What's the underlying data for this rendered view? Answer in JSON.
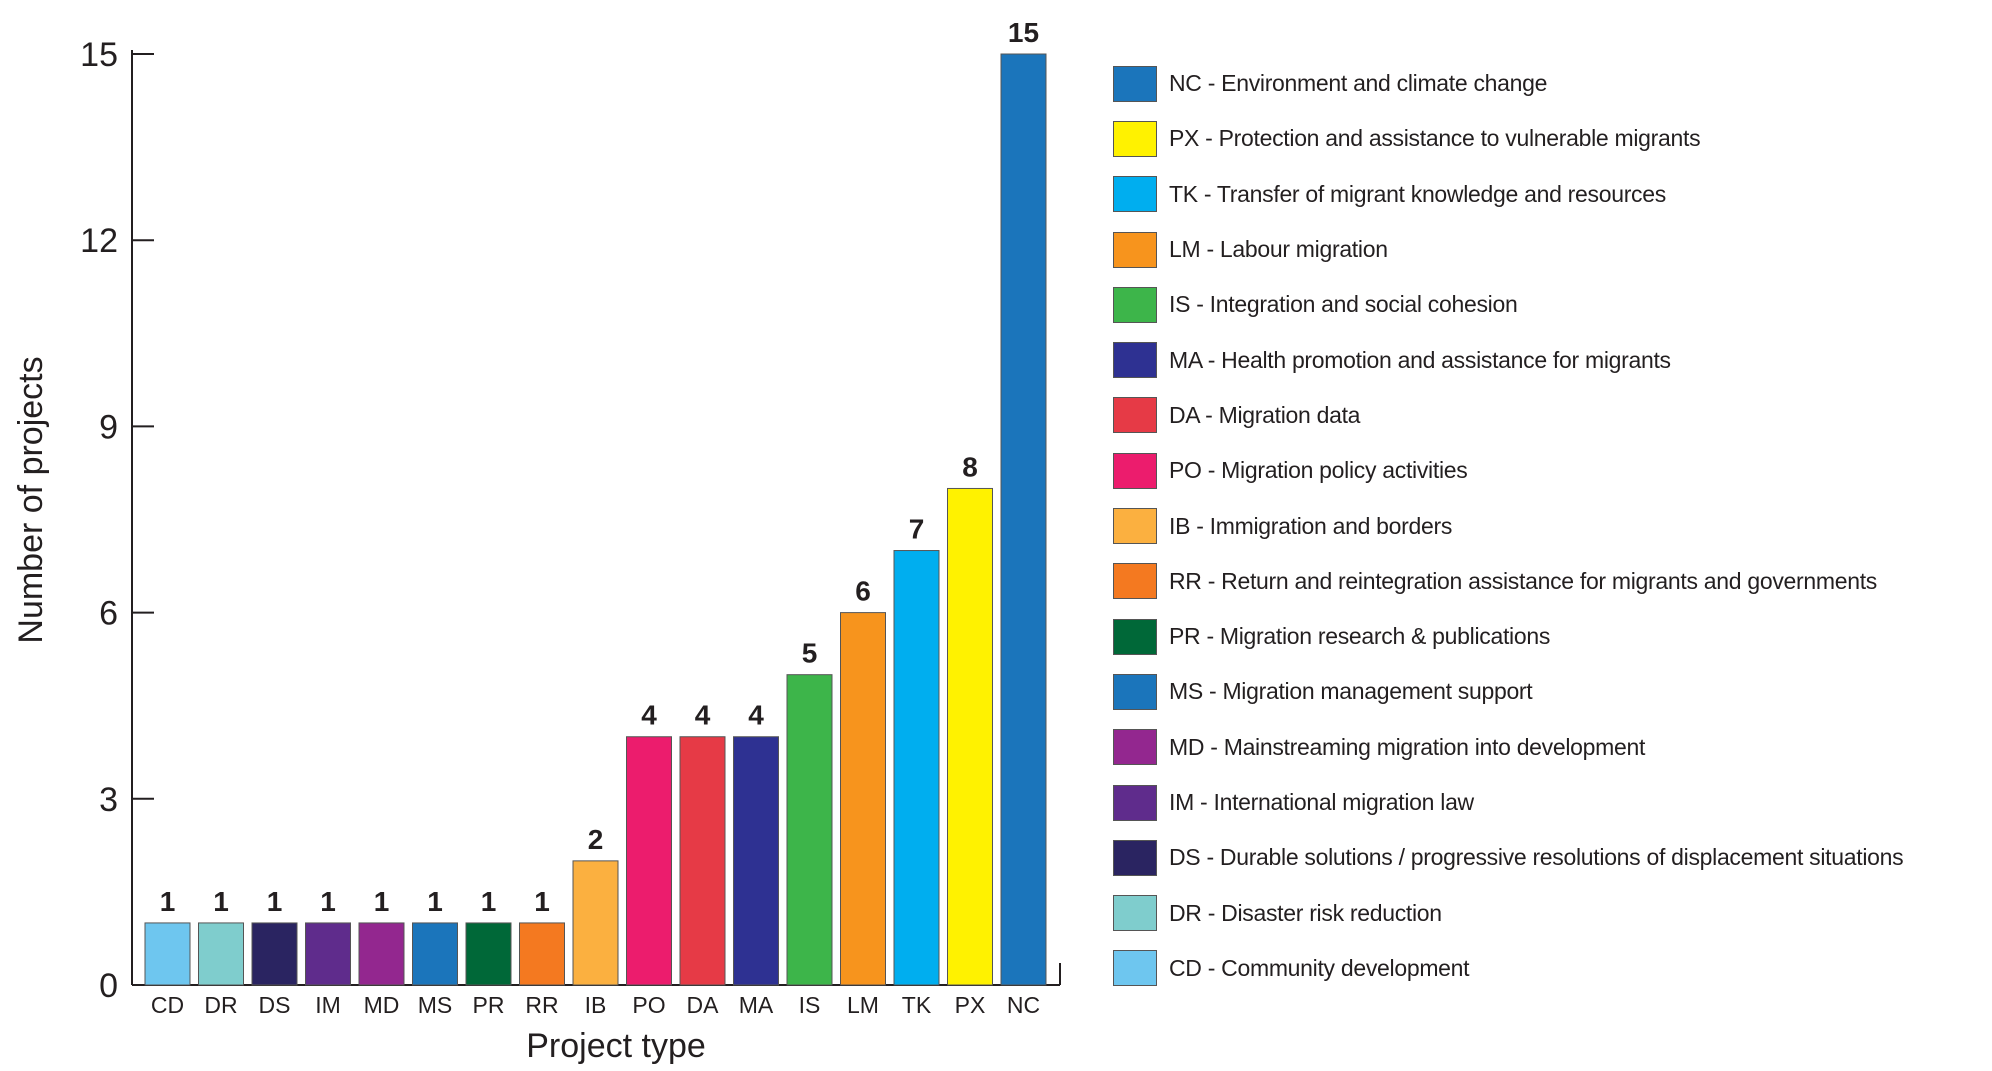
{
  "chart_data": {
    "type": "bar",
    "xlabel": "Project type",
    "ylabel": "Number of projects",
    "ylim": [
      0,
      15
    ],
    "yticks": [
      0,
      3,
      6,
      9,
      12,
      15
    ],
    "grid": false,
    "legend_position": "right",
    "categories": [
      "CD",
      "DR",
      "DS",
      "IM",
      "MD",
      "MS",
      "PR",
      "RR",
      "IB",
      "PO",
      "DA",
      "MA",
      "IS",
      "LM",
      "TK",
      "PX",
      "NC"
    ],
    "values": [
      1,
      1,
      1,
      1,
      1,
      1,
      1,
      1,
      2,
      4,
      4,
      4,
      5,
      6,
      7,
      8,
      15
    ],
    "colors": [
      "#6ec6ef",
      "#7fcdcd",
      "#2a2461",
      "#5f2c8c",
      "#93278f",
      "#1b75bb",
      "#006838",
      "#f47920",
      "#fbb040",
      "#ec1c6d",
      "#e63a46",
      "#2e3192",
      "#3db54a",
      "#f7941d",
      "#00aeef",
      "#fff200",
      "#1b75bb"
    ],
    "legend": [
      {
        "code": "NC",
        "label": "NC - Environment and climate change",
        "color": "#1b75bb"
      },
      {
        "code": "PX",
        "label": "PX - Protection and assistance to vulnerable migrants",
        "color": "#fff200"
      },
      {
        "code": "TK",
        "label": "TK - Transfer of migrant knowledge and resources",
        "color": "#00aeef"
      },
      {
        "code": "LM",
        "label": "LM - Labour migration",
        "color": "#f7941d"
      },
      {
        "code": "IS",
        "label": "IS - Integration and social cohesion",
        "color": "#3db54a"
      },
      {
        "code": "MA",
        "label": "MA - Health promotion and assistance for migrants",
        "color": "#2e3192"
      },
      {
        "code": "DA",
        "label": "DA - Migration data",
        "color": "#e63a46"
      },
      {
        "code": "PO",
        "label": "PO - Migration policy activities",
        "color": "#ec1c6d"
      },
      {
        "code": "IB",
        "label": "IB - Immigration and borders",
        "color": "#fbb040"
      },
      {
        "code": "RR",
        "label": "RR - Return and reintegration assistance for migrants and governments",
        "color": "#f47920"
      },
      {
        "code": "PR",
        "label": "PR - Migration research & publications",
        "color": "#006838"
      },
      {
        "code": "MS",
        "label": "MS - Migration management support",
        "color": "#1b75bb"
      },
      {
        "code": "MD",
        "label": "MD - Mainstreaming migration into development",
        "color": "#93278f"
      },
      {
        "code": "IM",
        "label": "IM - International migration law",
        "color": "#5f2c8c"
      },
      {
        "code": "DS",
        "label": "DS - Durable solutions / progressive resolutions of displacement situations",
        "color": "#2a2461"
      },
      {
        "code": "DR",
        "label": "DR - Disaster risk reduction",
        "color": "#7fcdcd"
      },
      {
        "code": "CD",
        "label": "CD - Community development",
        "color": "#6ec6ef"
      }
    ]
  }
}
